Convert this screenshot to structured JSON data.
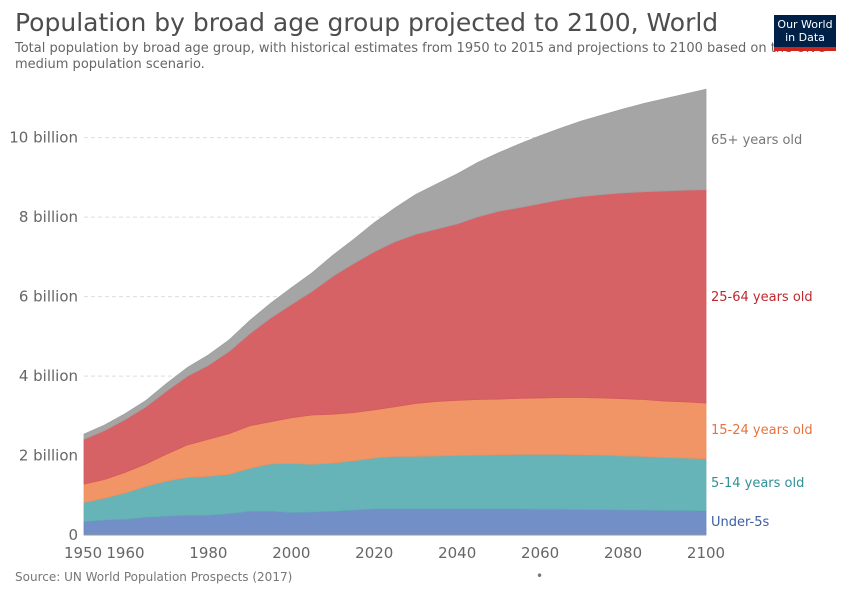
{
  "header": {
    "title": "Population by broad age group projected to 2100, World",
    "subtitle": "Total population by broad age group, with historical estimates from 1950 to 2015 and projections to 2100 based on the UN's medium population scenario.",
    "logo_line1": "Our World",
    "logo_line2": "in Data"
  },
  "footer": {
    "source": "Source: UN World Population Prospects (2017)",
    "dot": "•"
  },
  "colors": {
    "under5": "#6a89c4",
    "age5_14": "#5fb0b4",
    "age15_24": "#f08f5e",
    "age25_64": "#d55a5e",
    "age65": "#a0a0a0",
    "label_under5": "#3b5ea3",
    "label_5_14": "#2f9196",
    "label_15_24": "#e8733d",
    "label_25_64": "#c0282d",
    "label_65": "#777777"
  },
  "chart_data": {
    "type": "area",
    "stacked": true,
    "x": [
      1950,
      1955,
      1960,
      1965,
      1970,
      1975,
      1980,
      1985,
      1990,
      1995,
      2000,
      2005,
      2010,
      2015,
      2020,
      2025,
      2030,
      2035,
      2040,
      2045,
      2050,
      2055,
      2060,
      2065,
      2070,
      2075,
      2080,
      2085,
      2090,
      2095,
      2100
    ],
    "xlim": [
      1950,
      2100
    ],
    "ylim": [
      0,
      11200000000
    ],
    "yticks": [
      0,
      2000000000,
      4000000000,
      6000000000,
      8000000000,
      10000000000
    ],
    "ytick_labels": [
      "0",
      "2 billion",
      "4 billion",
      "6 billion",
      "8 billion",
      "10 billion"
    ],
    "xticks": [
      1950,
      1960,
      1980,
      2000,
      2020,
      2040,
      2060,
      2080,
      2100
    ],
    "xtick_labels": [
      "1950",
      "1960",
      "1980",
      "2000",
      "2020",
      "2040",
      "2060",
      "2080",
      "2100"
    ],
    "grid": true,
    "legend": "inline-right",
    "series": [
      {
        "name": "Under-5s",
        "values": [
          0.34,
          0.38,
          0.4,
          0.45,
          0.48,
          0.5,
          0.5,
          0.54,
          0.6,
          0.6,
          0.57,
          0.58,
          0.6,
          0.63,
          0.66,
          0.66,
          0.66,
          0.66,
          0.66,
          0.66,
          0.66,
          0.66,
          0.65,
          0.65,
          0.64,
          0.64,
          0.63,
          0.63,
          0.62,
          0.62,
          0.61
        ]
      },
      {
        "name": "5-14 years old",
        "values": [
          0.48,
          0.55,
          0.66,
          0.78,
          0.88,
          0.95,
          0.98,
          0.99,
          1.08,
          1.19,
          1.23,
          1.2,
          1.21,
          1.24,
          1.28,
          1.32,
          1.32,
          1.33,
          1.34,
          1.35,
          1.36,
          1.37,
          1.38,
          1.38,
          1.38,
          1.37,
          1.36,
          1.35,
          1.33,
          1.32,
          1.31
        ]
      },
      {
        "name": "15-24 years old",
        "values": [
          0.46,
          0.47,
          0.52,
          0.56,
          0.68,
          0.82,
          0.93,
          1.02,
          1.07,
          1.06,
          1.15,
          1.24,
          1.23,
          1.21,
          1.21,
          1.25,
          1.33,
          1.37,
          1.39,
          1.4,
          1.4,
          1.41,
          1.42,
          1.43,
          1.44,
          1.44,
          1.44,
          1.43,
          1.42,
          1.41,
          1.4
        ]
      },
      {
        "name": "25-64 years old",
        "values": [
          1.13,
          1.23,
          1.33,
          1.44,
          1.59,
          1.73,
          1.86,
          2.07,
          2.32,
          2.61,
          2.85,
          3.11,
          3.47,
          3.75,
          3.98,
          4.15,
          4.26,
          4.34,
          4.44,
          4.6,
          4.73,
          4.8,
          4.89,
          4.98,
          5.06,
          5.12,
          5.18,
          5.23,
          5.29,
          5.33,
          5.37
        ]
      },
      {
        "name": "65+ years old",
        "values": [
          0.13,
          0.14,
          0.15,
          0.16,
          0.19,
          0.22,
          0.26,
          0.29,
          0.33,
          0.37,
          0.42,
          0.47,
          0.53,
          0.61,
          0.73,
          0.85,
          1.0,
          1.13,
          1.26,
          1.37,
          1.47,
          1.6,
          1.71,
          1.8,
          1.9,
          2.0,
          2.11,
          2.22,
          2.32,
          2.42,
          2.53
        ]
      }
    ],
    "values_unit_scale": 1000000000
  }
}
